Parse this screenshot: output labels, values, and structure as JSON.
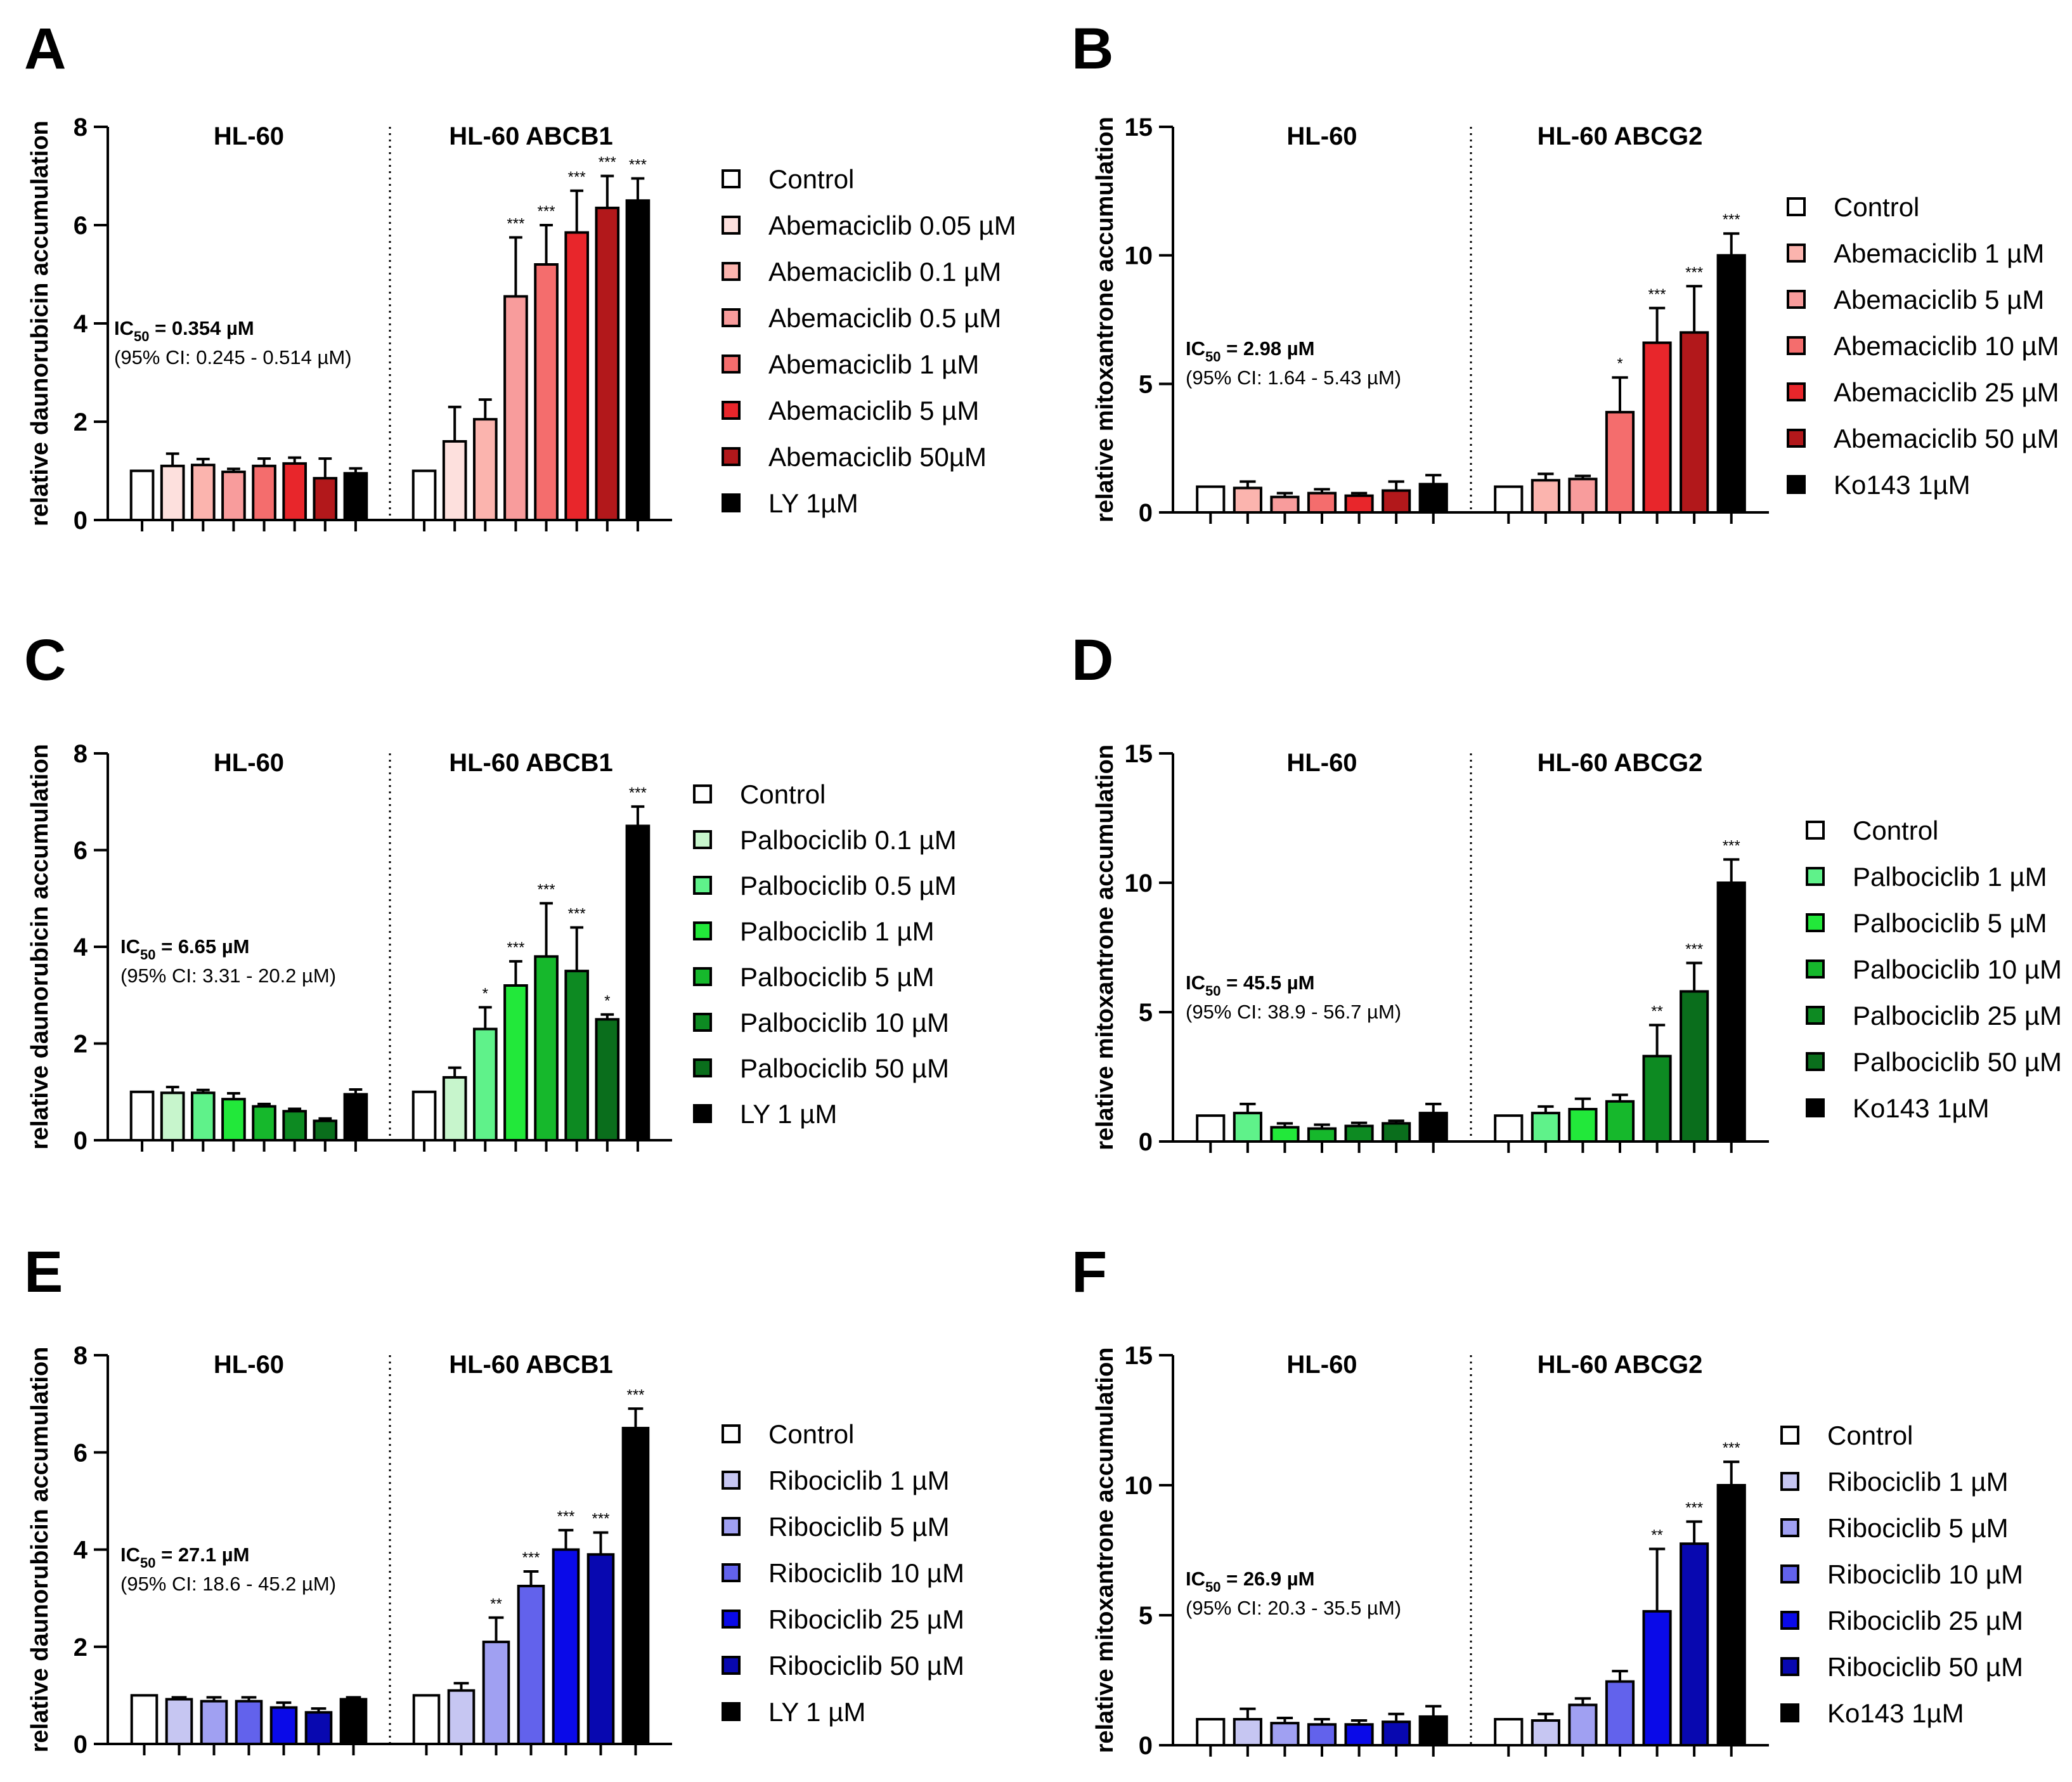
{
  "chart_data": [
    {
      "type": "bar",
      "panel": "A",
      "ylabel": "relative daunorubicin accumulation",
      "ylim": [
        0,
        8
      ],
      "yticks": [
        0,
        2,
        4,
        6,
        8
      ],
      "groups": [
        "HL-60",
        "HL-60 ABCB1"
      ],
      "ic50": {
        "label": "IC50 = 0.354 µM",
        "main": "IC",
        "sub": "50",
        "value": " = 0.354 µM",
        "ci": "(95% CI: 0.245 - 0.514 µM)"
      },
      "series": [
        {
          "name": "Control",
          "color": "#ffffff",
          "values": [
            1.0,
            1.0
          ],
          "errors": [
            0,
            0
          ],
          "sig": [
            "",
            ""
          ]
        },
        {
          "name": "Abemaciclib 0.05 µM",
          "color": "#fde0dd",
          "values": [
            1.1,
            1.6
          ],
          "errors": [
            0.25,
            0.7
          ],
          "sig": [
            "",
            ""
          ]
        },
        {
          "name": "Abemaciclib 0.1 µM",
          "color": "#fbb4ae",
          "values": [
            1.12,
            2.05
          ],
          "errors": [
            0.12,
            0.4
          ],
          "sig": [
            "",
            ""
          ]
        },
        {
          "name": "Abemaciclib 0.5 µM",
          "color": "#f89c9c",
          "values": [
            0.98,
            4.55
          ],
          "errors": [
            0.06,
            1.2
          ],
          "sig": [
            "",
            "***"
          ]
        },
        {
          "name": "Abemaciclib 1 µM",
          "color": "#f46d6d",
          "values": [
            1.1,
            5.2
          ],
          "errors": [
            0.15,
            0.8
          ],
          "sig": [
            "",
            "***"
          ]
        },
        {
          "name": "Abemaciclib 5 µM",
          "color": "#e8262b",
          "values": [
            1.15,
            5.85
          ],
          "errors": [
            0.12,
            0.85
          ],
          "sig": [
            "",
            "***"
          ]
        },
        {
          "name": "Abemaciclib 50µM",
          "color": "#b2181b",
          "values": [
            0.85,
            6.35
          ],
          "errors": [
            0.4,
            0.65
          ],
          "sig": [
            "",
            "***"
          ]
        },
        {
          "name": "LY 1µM",
          "color": "#000000",
          "values": [
            0.95,
            6.5
          ],
          "errors": [
            0.1,
            0.45
          ],
          "sig": [
            "",
            "***"
          ]
        }
      ]
    },
    {
      "type": "bar",
      "panel": "B",
      "ylabel": "relative mitoxantrone accumulation",
      "ylim": [
        0,
        15
      ],
      "yticks": [
        0,
        5,
        10,
        15
      ],
      "groups": [
        "HL-60",
        "HL-60 ABCG2"
      ],
      "ic50": {
        "label": "IC50 = 2.98 µM",
        "main": "IC",
        "sub": "50",
        "value": " = 2.98 µM",
        "ci": "(95% CI: 1.64 - 5.43 µM)"
      },
      "series": [
        {
          "name": "Control",
          "color": "#ffffff",
          "values": [
            1.0,
            1.0
          ],
          "errors": [
            0,
            0
          ],
          "sig": [
            "",
            ""
          ]
        },
        {
          "name": "Abemaciclib 1 µM",
          "color": "#fbb4ae",
          "values": [
            0.95,
            1.25
          ],
          "errors": [
            0.25,
            0.25
          ],
          "sig": [
            "",
            ""
          ]
        },
        {
          "name": "Abemaciclib 5 µM",
          "color": "#f89c9c",
          "values": [
            0.6,
            1.3
          ],
          "errors": [
            0.15,
            0.12
          ],
          "sig": [
            "",
            ""
          ]
        },
        {
          "name": "Abemaciclib 10 µM",
          "color": "#f46d6d",
          "values": [
            0.75,
            3.9
          ],
          "errors": [
            0.15,
            1.35
          ],
          "sig": [
            "",
            "*"
          ]
        },
        {
          "name": "Abemaciclib 25 µM",
          "color": "#e8262b",
          "values": [
            0.65,
            6.6
          ],
          "errors": [
            0.1,
            1.35
          ],
          "sig": [
            "",
            "***"
          ]
        },
        {
          "name": "Abemaciclib 50 µM",
          "color": "#b2181b",
          "values": [
            0.85,
            7.0
          ],
          "errors": [
            0.35,
            1.8
          ],
          "sig": [
            "",
            "***"
          ]
        },
        {
          "name": "Ko143 1µM",
          "color": "#000000",
          "values": [
            1.1,
            10.0
          ],
          "errors": [
            0.35,
            0.85
          ],
          "sig": [
            "",
            "***"
          ]
        }
      ]
    },
    {
      "type": "bar",
      "panel": "C",
      "ylabel": "relative daunorubicin accumulation",
      "ylim": [
        0,
        8
      ],
      "yticks": [
        0,
        2,
        4,
        6,
        8
      ],
      "groups": [
        "HL-60",
        "HL-60 ABCB1"
      ],
      "ic50": {
        "label": "IC50 = 6.65 µM",
        "main": "IC",
        "sub": "50",
        "value": " = 6.65 µM",
        "ci": "(95% CI: 3.31 - 20.2 µM)"
      },
      "series": [
        {
          "name": "Control",
          "color": "#ffffff",
          "values": [
            1.0,
            1.0
          ],
          "errors": [
            0,
            0
          ],
          "sig": [
            "",
            ""
          ]
        },
        {
          "name": "Palbociclib 0.1 µM",
          "color": "#c7f5cc",
          "values": [
            0.98,
            1.3
          ],
          "errors": [
            0.12,
            0.2
          ],
          "sig": [
            "",
            ""
          ]
        },
        {
          "name": "Palbociclib 0.5 µM",
          "color": "#5ff28a",
          "values": [
            0.98,
            2.3
          ],
          "errors": [
            0.06,
            0.45
          ],
          "sig": [
            "",
            "*"
          ]
        },
        {
          "name": "Palbociclib 1 µM",
          "color": "#22e83a",
          "values": [
            0.85,
            3.2
          ],
          "errors": [
            0.12,
            0.5
          ],
          "sig": [
            "",
            "***"
          ]
        },
        {
          "name": "Palbociclib 5 µM",
          "color": "#16b82c",
          "values": [
            0.7,
            3.8
          ],
          "errors": [
            0.05,
            1.1
          ],
          "sig": [
            "",
            "***"
          ]
        },
        {
          "name": "Palbociclib 10 µM",
          "color": "#0d8a22",
          "values": [
            0.6,
            3.5
          ],
          "errors": [
            0.05,
            0.9
          ],
          "sig": [
            "",
            "***"
          ]
        },
        {
          "name": "Palbociclib 50 µM",
          "color": "#0a6e1c",
          "values": [
            0.4,
            2.5
          ],
          "errors": [
            0.05,
            0.1
          ],
          "sig": [
            "",
            "*"
          ]
        },
        {
          "name": "LY 1 µM",
          "color": "#000000",
          "values": [
            0.95,
            6.5
          ],
          "errors": [
            0.1,
            0.4
          ],
          "sig": [
            "",
            "***"
          ]
        }
      ]
    },
    {
      "type": "bar",
      "panel": "D",
      "ylabel": "relative mitoxantrone accumulation",
      "ylim": [
        0,
        15
      ],
      "yticks": [
        0,
        5,
        10,
        15
      ],
      "groups": [
        "HL-60",
        "HL-60 ABCG2"
      ],
      "ic50": {
        "label": "IC50 = 45.5 µM",
        "main": "IC",
        "sub": "50",
        "value": " = 45.5 µM",
        "ci": "(95% CI: 38.9 - 56.7 µM)"
      },
      "series": [
        {
          "name": "Control",
          "color": "#ffffff",
          "values": [
            1.0,
            1.0
          ],
          "errors": [
            0,
            0
          ],
          "sig": [
            "",
            ""
          ]
        },
        {
          "name": "Palbociclib 1 µM",
          "color": "#5ff28a",
          "values": [
            1.1,
            1.1
          ],
          "errors": [
            0.35,
            0.25
          ],
          "sig": [
            "",
            ""
          ]
        },
        {
          "name": "Palbociclib 5 µM",
          "color": "#22e83a",
          "values": [
            0.55,
            1.25
          ],
          "errors": [
            0.15,
            0.4
          ],
          "sig": [
            "",
            ""
          ]
        },
        {
          "name": "Palbociclib 10 µM",
          "color": "#16b82c",
          "values": [
            0.5,
            1.55
          ],
          "errors": [
            0.15,
            0.25
          ],
          "sig": [
            "",
            ""
          ]
        },
        {
          "name": "Palbociclib 25 µM",
          "color": "#0d8a22",
          "values": [
            0.6,
            3.3
          ],
          "errors": [
            0.12,
            1.2
          ],
          "sig": [
            "",
            "**"
          ]
        },
        {
          "name": "Palbociclib 50 µM",
          "color": "#0a6e1c",
          "values": [
            0.7,
            5.8
          ],
          "errors": [
            0.1,
            1.1
          ],
          "sig": [
            "",
            "***"
          ]
        },
        {
          "name": "Ko143 1µM",
          "color": "#000000",
          "values": [
            1.1,
            10.0
          ],
          "errors": [
            0.35,
            0.9
          ],
          "sig": [
            "",
            "***"
          ]
        }
      ]
    },
    {
      "type": "bar",
      "panel": "E",
      "ylabel": "relative daunorubicin accumulation",
      "ylim": [
        0,
        8
      ],
      "yticks": [
        0,
        2,
        4,
        6,
        8
      ],
      "groups": [
        "HL-60",
        "HL-60 ABCB1"
      ],
      "ic50": {
        "label": "IC50 = 27.1 µM",
        "main": "IC",
        "sub": "50",
        "value": " = 27.1 µM",
        "ci": "(95% CI: 18.6 - 45.2 µM)"
      },
      "series": [
        {
          "name": "Control",
          "color": "#ffffff",
          "values": [
            1.0,
            1.0
          ],
          "errors": [
            0,
            0
          ],
          "sig": [
            "",
            ""
          ]
        },
        {
          "name": "Ribociclib 1 µM",
          "color": "#c6c6f2",
          "values": [
            0.92,
            1.1
          ],
          "errors": [
            0.04,
            0.15
          ],
          "sig": [
            "",
            ""
          ]
        },
        {
          "name": "Ribociclib 5 µM",
          "color": "#a0a0f2",
          "values": [
            0.88,
            2.1
          ],
          "errors": [
            0.08,
            0.5
          ],
          "sig": [
            "",
            "**"
          ]
        },
        {
          "name": "Ribociclib 10 µM",
          "color": "#6262ec",
          "values": [
            0.88,
            3.25
          ],
          "errors": [
            0.08,
            0.3
          ],
          "sig": [
            "",
            "***"
          ]
        },
        {
          "name": "Ribociclib 25 µM",
          "color": "#0a0ae8",
          "values": [
            0.75,
            4.0
          ],
          "errors": [
            0.1,
            0.4
          ],
          "sig": [
            "",
            "***"
          ]
        },
        {
          "name": "Ribociclib 50 µM",
          "color": "#0808b0",
          "values": [
            0.65,
            3.9
          ],
          "errors": [
            0.08,
            0.45
          ],
          "sig": [
            "",
            "***"
          ]
        },
        {
          "name": "LY 1 µM",
          "color": "#000000",
          "values": [
            0.92,
            6.5
          ],
          "errors": [
            0.04,
            0.4
          ],
          "sig": [
            "",
            "***"
          ]
        }
      ]
    },
    {
      "type": "bar",
      "panel": "F",
      "ylabel": "relative mitoxantrone accumulation",
      "ylim": [
        0,
        15
      ],
      "yticks": [
        0,
        5,
        10,
        15
      ],
      "groups": [
        "HL-60",
        "HL-60 ABCG2"
      ],
      "ic50": {
        "label": "IC50 = 26.9 µM",
        "main": "IC",
        "sub": "50",
        "value": " = 26.9 µM",
        "ci": "(95% CI: 20.3 - 35.5 µM)"
      },
      "series": [
        {
          "name": "Control",
          "color": "#ffffff",
          "values": [
            1.0,
            1.0
          ],
          "errors": [
            0,
            0
          ],
          "sig": [
            "",
            ""
          ]
        },
        {
          "name": "Ribociclib 1 µM",
          "color": "#c6c6f2",
          "values": [
            1.0,
            0.95
          ],
          "errors": [
            0.4,
            0.25
          ],
          "sig": [
            "",
            ""
          ]
        },
        {
          "name": "Ribociclib 5 µM",
          "color": "#a0a0f2",
          "values": [
            0.85,
            1.55
          ],
          "errors": [
            0.2,
            0.25
          ],
          "sig": [
            "",
            ""
          ]
        },
        {
          "name": "Ribociclib 10 µM",
          "color": "#6262ec",
          "values": [
            0.8,
            2.45
          ],
          "errors": [
            0.2,
            0.4
          ],
          "sig": [
            "",
            ""
          ]
        },
        {
          "name": "Ribociclib 25 µM",
          "color": "#0a0ae8",
          "values": [
            0.8,
            5.15
          ],
          "errors": [
            0.15,
            2.4
          ],
          "sig": [
            "",
            "**"
          ]
        },
        {
          "name": "Ribociclib 50 µM",
          "color": "#0808b0",
          "values": [
            0.9,
            7.75
          ],
          "errors": [
            0.3,
            0.85
          ],
          "sig": [
            "",
            "***"
          ]
        },
        {
          "name": "Ko143 1µM",
          "color": "#000000",
          "values": [
            1.1,
            10.0
          ],
          "errors": [
            0.4,
            0.9
          ],
          "sig": [
            "",
            "***"
          ]
        }
      ]
    }
  ]
}
